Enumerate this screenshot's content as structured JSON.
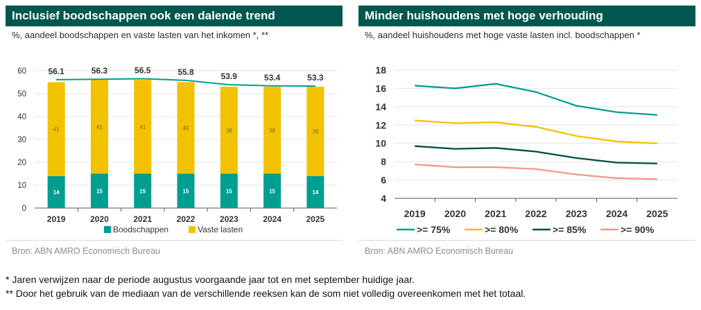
{
  "footnotes": [
    "* Jaren verwijzen naar de periode augustus voorgaande jaar tot en met september huidige jaar.",
    "** Door het gebruik van de mediaan van de verschillende reeksen kan de som niet volledig overeenkomen met het totaal."
  ],
  "colors": {
    "header_bg": "#00574f",
    "teal": "#009e91",
    "yellow": "#f2c200",
    "dark_green": "#004c45",
    "salmon": "#f09a84"
  },
  "chart_data": [
    {
      "type": "bar",
      "title": "Inclusief boodschappen ook een dalende trend",
      "subtitle": "%, aandeel boodschappen en vaste lasten van het inkomen *, **",
      "source": "Bron: ABN AMRO Economisch Bureau",
      "categories": [
        "2019",
        "2020",
        "2021",
        "2022",
        "2023",
        "2024",
        "2025"
      ],
      "ylim": [
        0,
        60
      ],
      "yticks": [
        "0",
        "10",
        "20",
        "30",
        "40",
        "50",
        "60"
      ],
      "stacked": true,
      "grid": true,
      "legend_position": "bottom",
      "series": [
        {
          "name": "Boodschappen",
          "color": "#009e91",
          "values": [
            14,
            15,
            15,
            15,
            15,
            15,
            14
          ],
          "labels": [
            "14",
            "15",
            "15",
            "15",
            "15",
            "15",
            "14"
          ]
        },
        {
          "name": "Vaste lasten",
          "color": "#f2c200",
          "values": [
            41,
            41,
            41,
            40,
            38,
            38,
            39
          ],
          "labels": [
            "41",
            "41",
            "41",
            "40",
            "38",
            "38",
            "39"
          ]
        }
      ],
      "total_line": {
        "name": "Totaal",
        "color": "#009e91",
        "values": [
          56.1,
          56.3,
          56.5,
          55.8,
          53.9,
          53.4,
          53.3
        ],
        "labels": [
          "56.1",
          "56.3",
          "56.5",
          "55.8",
          "53.9",
          "53.4",
          "53.3"
        ]
      }
    },
    {
      "type": "line",
      "title": "Minder huishoudens met hoge verhouding",
      "subtitle": "%, aandeel huishoudens met hoge vaste lasten incl. boodschappen *",
      "source": "Bron: ABN AMRO Economisch Bureau",
      "x": [
        "2019",
        "2020",
        "2021",
        "2022",
        "2023",
        "2024",
        "2025"
      ],
      "ylim": [
        4,
        18
      ],
      "yticks": [
        "4",
        "6",
        "8",
        "10",
        "12",
        "14",
        "16",
        "18"
      ],
      "grid": true,
      "legend_position": "bottom",
      "series": [
        {
          "name": ">= 75%",
          "color": "#009e91",
          "values": [
            16.3,
            16.0,
            16.5,
            15.6,
            14.1,
            13.4,
            13.1
          ]
        },
        {
          "name": ">= 80%",
          "color": "#f2c200",
          "values": [
            12.5,
            12.2,
            12.3,
            11.8,
            10.8,
            10.2,
            10.0
          ]
        },
        {
          "name": ">= 85%",
          "color": "#004c45",
          "values": [
            9.7,
            9.4,
            9.5,
            9.1,
            8.4,
            7.9,
            7.8
          ]
        },
        {
          "name": ">= 90%",
          "color": "#f09a84",
          "values": [
            7.7,
            7.4,
            7.4,
            7.2,
            6.6,
            6.2,
            6.1
          ]
        }
      ]
    }
  ]
}
